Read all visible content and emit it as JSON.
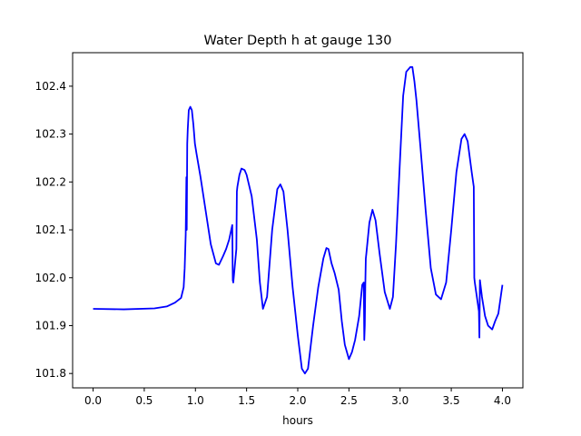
{
  "chart_data": {
    "type": "line",
    "title": "Water Depth h at gauge 130",
    "xlabel": "hours",
    "ylabel": "",
    "xlim": [
      -0.2,
      4.2
    ],
    "ylim": [
      101.77,
      102.47
    ],
    "x_ticks": [
      0.0,
      0.5,
      1.0,
      1.5,
      2.0,
      2.5,
      3.0,
      3.5,
      4.0
    ],
    "x_tick_labels": [
      "0.0",
      "0.5",
      "1.0",
      "1.5",
      "2.0",
      "2.5",
      "3.0",
      "3.5",
      "4.0"
    ],
    "y_ticks": [
      101.8,
      101.9,
      102.0,
      102.1,
      102.2,
      102.3,
      102.4
    ],
    "y_tick_labels": [
      "101.8",
      "101.9",
      "102.0",
      "102.1",
      "102.2",
      "102.3",
      "102.4"
    ],
    "grid": false,
    "line_color": "#0000ff",
    "series": [
      {
        "name": "",
        "x": [
          0.0,
          0.3,
          0.6,
          0.72,
          0.8,
          0.86,
          0.885,
          0.895,
          0.905,
          0.912,
          0.915,
          0.92,
          0.925,
          0.93,
          0.935,
          0.95,
          0.965,
          0.98,
          0.995,
          1.01,
          1.05,
          1.1,
          1.15,
          1.2,
          1.23,
          1.27,
          1.3,
          1.33,
          1.36,
          1.365,
          1.37,
          1.4,
          1.405,
          1.41,
          1.43,
          1.45,
          1.48,
          1.5,
          1.55,
          1.6,
          1.63,
          1.66,
          1.7,
          1.75,
          1.8,
          1.83,
          1.86,
          1.9,
          1.95,
          2.0,
          2.04,
          2.07,
          2.1,
          2.15,
          2.2,
          2.25,
          2.28,
          2.3,
          2.33,
          2.36,
          2.4,
          2.43,
          2.46,
          2.5,
          2.53,
          2.56,
          2.6,
          2.63,
          2.645,
          2.65,
          2.655,
          2.66,
          2.665,
          2.67,
          2.7,
          2.73,
          2.76,
          2.8,
          2.85,
          2.9,
          2.93,
          2.96,
          3.0,
          3.03,
          3.06,
          3.1,
          3.12,
          3.14,
          3.16,
          3.2,
          3.25,
          3.3,
          3.35,
          3.4,
          3.45,
          3.5,
          3.55,
          3.6,
          3.63,
          3.66,
          3.7,
          3.72,
          3.725,
          3.73,
          3.77,
          3.775,
          3.78,
          3.8,
          3.83,
          3.86,
          3.9,
          3.93,
          3.96,
          4.0
        ],
        "y": [
          101.935,
          101.934,
          101.936,
          101.94,
          101.948,
          101.958,
          101.98,
          102.02,
          102.09,
          102.21,
          102.1,
          102.28,
          102.31,
          102.33,
          102.35,
          102.357,
          102.35,
          102.32,
          102.28,
          102.26,
          102.21,
          102.14,
          102.07,
          102.03,
          102.027,
          102.045,
          102.06,
          102.08,
          102.11,
          101.995,
          101.99,
          102.06,
          102.18,
          102.19,
          102.215,
          102.228,
          102.225,
          102.215,
          102.17,
          102.08,
          101.99,
          101.935,
          101.96,
          102.1,
          102.185,
          102.195,
          102.18,
          102.1,
          101.98,
          101.88,
          101.81,
          101.8,
          101.81,
          101.9,
          101.98,
          102.04,
          102.062,
          102.06,
          102.03,
          102.01,
          101.975,
          101.91,
          101.86,
          101.83,
          101.845,
          101.87,
          101.92,
          101.985,
          101.99,
          101.87,
          101.9,
          101.985,
          102.04,
          102.05,
          102.115,
          102.142,
          102.12,
          102.05,
          101.97,
          101.935,
          101.96,
          102.07,
          102.25,
          102.38,
          102.43,
          102.44,
          102.44,
          102.41,
          102.37,
          102.27,
          102.14,
          102.02,
          101.965,
          101.955,
          101.99,
          102.1,
          102.22,
          102.29,
          102.3,
          102.285,
          102.22,
          102.19,
          102.0,
          101.99,
          101.93,
          101.875,
          101.995,
          101.96,
          101.92,
          101.9,
          101.892,
          101.91,
          101.925,
          101.985
        ]
      }
    ]
  }
}
